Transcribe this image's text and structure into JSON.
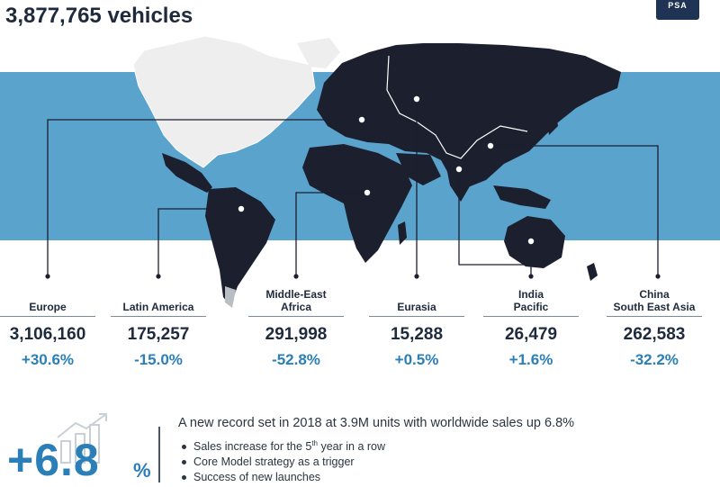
{
  "header": {
    "title": "3,877,765 vehicles",
    "logo_text": "PSA"
  },
  "colors": {
    "band": "#5aa3cd",
    "land": "#1b1f2e",
    "north_america": "#eeeeee",
    "accent": "#2a7fb8",
    "text": "#1f2a3c"
  },
  "regions": [
    {
      "name": "Europe",
      "value": "3,106,160",
      "change": "+30.6%"
    },
    {
      "name": "Latin America",
      "value": "175,257",
      "change": "-15.0%"
    },
    {
      "name": "Middle-East\nAfrica",
      "value": "291,998",
      "change": "-52.8%"
    },
    {
      "name": "Eurasia",
      "value": "15,288",
      "change": "+0.5%"
    },
    {
      "name": "India\nPacific",
      "value": "26,479",
      "change": "+1.6%"
    },
    {
      "name": "China\nSouth East Asia",
      "value": "262,583",
      "change": "-32.2%"
    }
  ],
  "summary": {
    "big_number": "+6.8",
    "percent_sign": "%",
    "headline": "A new record set in 2018 at 3.9M units with worldwide sales up 6.8%",
    "bullet_1_text": "Sales increase for the 5",
    "bullet_1_sup": "th",
    "bullet_1_tail": " year in a row",
    "bullet_2": "Core Model strategy as a trigger",
    "bullet_3": "Success of new launches"
  }
}
